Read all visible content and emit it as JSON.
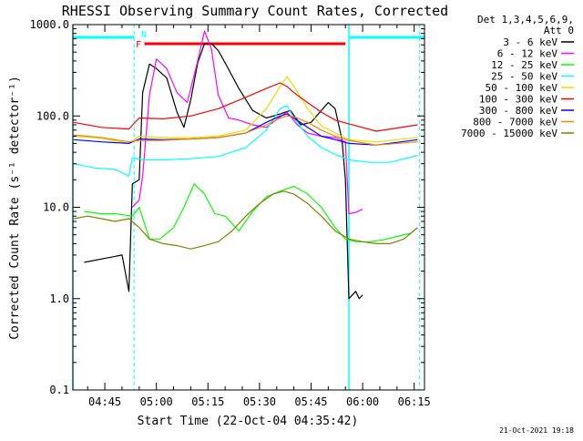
{
  "chart_data": {
    "type": "line",
    "title": "RHESSI Observing Summary Count Rates, Corrected",
    "xlabel": "Start Time (22-Oct-04 04:35:42)",
    "ylabel": "Corrected Count Rate (s⁻¹ detector⁻¹)",
    "yscale": "log",
    "ylim": [
      0.1,
      1000
    ],
    "xlim": [
      "04:35:42",
      "06:18:00"
    ],
    "x_ticks": [
      "04:45",
      "05:00",
      "05:15",
      "05:30",
      "05:45",
      "06:00",
      "06:15"
    ],
    "y_ticks": [
      "0.1",
      "1.0",
      "10.0",
      "100.0",
      "1000.0"
    ],
    "legend_header": [
      "Det 1,3,4,5,6,9,",
      "Att 0"
    ],
    "legend_position": "right",
    "timestamp": "21-Oct-2021 19:18",
    "grid": false,
    "annotations": {
      "night_label": "N",
      "flare_label": "F",
      "flare_bar_color": "#ff0000",
      "night_bar_color": "#00ffff",
      "night_periods": [
        [
          "04:35:42",
          "04:53:30"
        ],
        [
          "05:56:00",
          "06:18:00"
        ]
      ],
      "flare_period": [
        "04:56:30",
        "05:55:00"
      ],
      "saa_markers": [
        "04:53:30",
        "05:56:00",
        "06:16:30"
      ]
    },
    "series": [
      {
        "name": "3 - 6 keV",
        "color": "#000000",
        "x": [
          "04:39",
          "04:50",
          "04:52",
          "04:53",
          "04:55",
          "04:56",
          "04:58",
          "05:00",
          "05:03",
          "05:06",
          "05:08",
          "05:10",
          "05:12",
          "05:14",
          "05:16",
          "05:18",
          "05:20",
          "05:24",
          "05:28",
          "05:32",
          "05:36",
          "05:39",
          "05:42",
          "05:45",
          "05:48",
          "05:50",
          "05:52",
          "05:54",
          "05:55",
          "05:56",
          "05:58",
          "05:59",
          "06:00"
        ],
        "y": [
          2.5,
          3.0,
          1.2,
          18,
          20,
          180,
          370,
          330,
          260,
          110,
          75,
          150,
          380,
          620,
          620,
          520,
          380,
          200,
          115,
          95,
          105,
          115,
          80,
          85,
          115,
          140,
          120,
          55,
          20,
          1.0,
          1.2,
          1.0,
          1.1
        ]
      },
      {
        "name": "6 - 12 keV",
        "color": "#ff00ff",
        "x": [
          "04:53",
          "04:55",
          "04:56",
          "04:58",
          "05:00",
          "05:03",
          "05:06",
          "05:09",
          "05:12",
          "05:14",
          "05:16",
          "05:18",
          "05:21",
          "05:24",
          "05:28",
          "05:32",
          "05:36",
          "05:38",
          "05:41",
          "05:44",
          "05:48",
          "05:52",
          "05:55",
          "05:56",
          "05:58",
          "06:00"
        ],
        "y": [
          10,
          12,
          22,
          170,
          420,
          330,
          180,
          140,
          400,
          850,
          540,
          170,
          95,
          90,
          80,
          75,
          98,
          110,
          80,
          65,
          60,
          58,
          52,
          8.5,
          8.8,
          9.5
        ]
      },
      {
        "name": "12 - 25 keV",
        "color": "#00ff00",
        "x": [
          "04:39",
          "04:44",
          "04:48",
          "04:53",
          "04:55",
          "04:58",
          "05:01",
          "05:05",
          "05:08",
          "05:11",
          "05:14",
          "05:17",
          "05:20",
          "05:24",
          "05:28",
          "05:32",
          "05:36",
          "05:40",
          "05:44",
          "05:48",
          "05:52",
          "05:55",
          "05:58",
          "06:02",
          "06:06",
          "06:10",
          "06:14",
          "06:16"
        ],
        "y": [
          9,
          8.5,
          8.5,
          8,
          10,
          4.5,
          4.5,
          6,
          10,
          18,
          14,
          8.5,
          8,
          5.5,
          9,
          13,
          15,
          17,
          14,
          10,
          6,
          4.5,
          4.2,
          4.2,
          4.4,
          4.8,
          5.2,
          6
        ]
      },
      {
        "name": "25 - 50 keV",
        "color": "#00ffff",
        "x": [
          "04:36",
          "04:42",
          "04:48",
          "04:52",
          "04:53",
          "04:56",
          "05:02",
          "05:10",
          "05:18",
          "05:26",
          "05:32",
          "05:36",
          "05:38",
          "05:40",
          "05:44",
          "05:48",
          "05:52",
          "05:56",
          "06:02",
          "06:08",
          "06:16"
        ],
        "y": [
          30,
          27,
          26,
          22,
          35,
          33,
          33,
          34,
          36,
          45,
          70,
          120,
          130,
          95,
          60,
          45,
          38,
          33,
          31,
          31,
          37
        ]
      },
      {
        "name": "50 - 100 keV",
        "color": "#e0e000",
        "x": [
          "04:36",
          "04:44",
          "04:52",
          "04:55",
          "05:02",
          "05:10",
          "05:18",
          "05:26",
          "05:32",
          "05:36",
          "05:38",
          "05:40",
          "05:44",
          "05:48",
          "05:52",
          "05:56",
          "06:04",
          "06:16"
        ],
        "y": [
          60,
          57,
          50,
          60,
          58,
          58,
          60,
          70,
          120,
          210,
          270,
          210,
          120,
          78,
          65,
          55,
          52,
          58
        ]
      },
      {
        "name": "100 - 300 keV",
        "color": "#ff0000",
        "x": [
          "04:36",
          "04:44",
          "04:52",
          "04:55",
          "05:02",
          "05:10",
          "05:18",
          "05:26",
          "05:32",
          "05:36",
          "05:38",
          "05:40",
          "05:44",
          "05:48",
          "05:52",
          "05:56",
          "06:04",
          "06:16"
        ],
        "y": [
          85,
          75,
          72,
          95,
          93,
          100,
          120,
          160,
          200,
          230,
          210,
          180,
          140,
          110,
          90,
          82,
          68,
          80
        ]
      },
      {
        "name": "300 - 800 keV",
        "color": "#0000ff",
        "x": [
          "04:36",
          "04:44",
          "04:52",
          "04:55",
          "05:02",
          "05:10",
          "05:18",
          "05:26",
          "05:32",
          "05:36",
          "05:38",
          "05:40",
          "05:44",
          "05:48",
          "05:52",
          "05:56",
          "06:04",
          "06:16"
        ],
        "y": [
          55,
          52,
          50,
          56,
          55,
          56,
          58,
          65,
          85,
          100,
          105,
          95,
          75,
          60,
          55,
          50,
          48,
          55
        ]
      },
      {
        "name": "800 - 7000 keV",
        "color": "#ff8000",
        "x": [
          "04:36",
          "04:44",
          "04:52",
          "04:55",
          "05:02",
          "05:10",
          "05:18",
          "05:26",
          "05:32",
          "05:36",
          "05:38",
          "05:40",
          "05:44",
          "05:48",
          "05:52",
          "05:56",
          "06:04",
          "06:16"
        ],
        "y": [
          62,
          58,
          52,
          54,
          54,
          56,
          58,
          65,
          80,
          95,
          100,
          98,
          85,
          70,
          60,
          54,
          48,
          52
        ]
      },
      {
        "name": "7000 - 15000 keV",
        "color": "#808000",
        "x": [
          "04:36",
          "04:40",
          "04:44",
          "04:48",
          "04:52",
          "04:55",
          "04:58",
          "05:02",
          "05:06",
          "05:10",
          "05:14",
          "05:18",
          "05:22",
          "05:26",
          "05:30",
          "05:34",
          "05:37",
          "05:40",
          "05:44",
          "05:48",
          "05:52",
          "05:56",
          "06:00",
          "06:04",
          "06:08",
          "06:12",
          "06:16"
        ],
        "y": [
          7.5,
          8,
          7.5,
          7,
          7.5,
          6,
          4.5,
          4,
          3.8,
          3.5,
          3.8,
          4.2,
          5.5,
          8,
          11,
          14,
          15,
          14,
          11,
          8,
          5.5,
          4.5,
          4.2,
          4,
          4,
          4.5,
          6
        ]
      }
    ]
  }
}
